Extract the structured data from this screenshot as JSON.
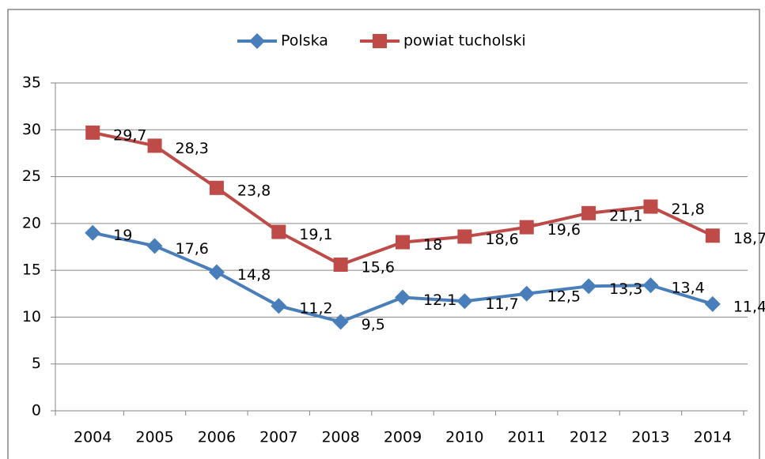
{
  "chart_data": {
    "type": "line",
    "categories": [
      "2004",
      "2005",
      "2006",
      "2007",
      "2008",
      "2009",
      "2010",
      "2011",
      "2012",
      "2013",
      "2014"
    ],
    "series": [
      {
        "name": "Polska",
        "color": "#4a7ebb",
        "marker": "diamond",
        "values": [
          19,
          17.6,
          14.8,
          11.2,
          9.5,
          12.1,
          11.7,
          12.5,
          13.3,
          13.4,
          11.4
        ],
        "value_labels": [
          "19",
          "17,6",
          "14,8",
          "11,2",
          "9,5",
          "12,1",
          "11,7",
          "12,5",
          "13,3",
          "13,4",
          "11,4"
        ]
      },
      {
        "name": "powiat tucholski",
        "color": "#be4b48",
        "marker": "square",
        "values": [
          29.7,
          28.3,
          23.8,
          19.1,
          15.6,
          18,
          18.6,
          19.6,
          21.1,
          21.8,
          18.7
        ],
        "value_labels": [
          "29,7",
          "28,3",
          "23,8",
          "19,1",
          "15,6",
          "18",
          "18,6",
          "19,6",
          "21,1",
          "21,8",
          "18,7"
        ]
      }
    ],
    "ylim": [
      0,
      35
    ],
    "yticks": [
      0,
      5,
      10,
      15,
      20,
      25,
      30,
      35
    ],
    "grid": true,
    "legend": "top"
  }
}
